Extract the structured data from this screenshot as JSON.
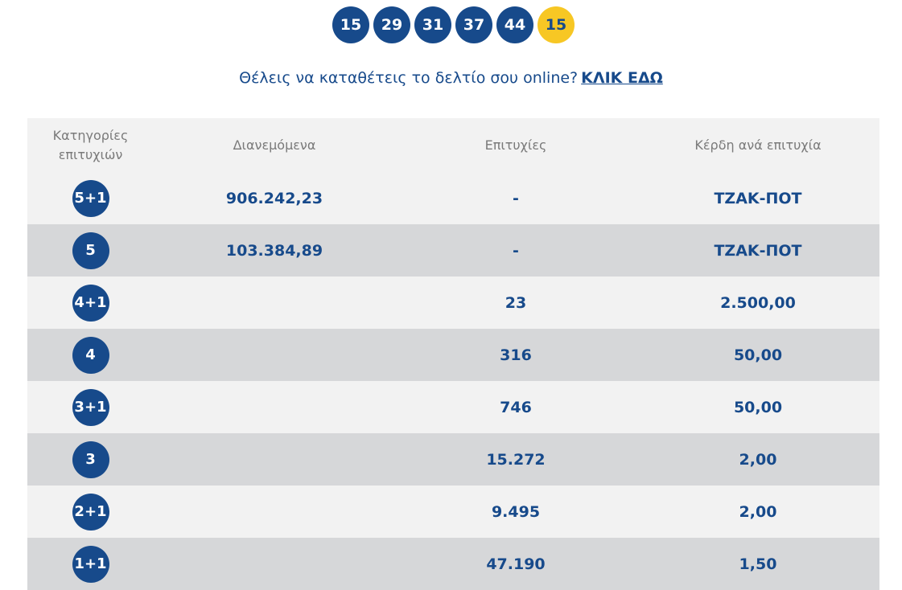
{
  "draw": {
    "numbers": [
      "15",
      "29",
      "31",
      "37",
      "44"
    ],
    "joker": "15"
  },
  "cta": {
    "text": "Θέλεις να καταθέτεις το δελτίο σου online?",
    "link": "ΚΛΙΚ ΕΔΩ"
  },
  "table": {
    "headers": {
      "category": "Κατηγορίες επιτυχιών",
      "distributed": "Διανεμόμενα",
      "winners": "Επιτυχίες",
      "prize": "Κέρδη ανά επιτυχία"
    },
    "rows": [
      {
        "category": "5+1",
        "distributed": "906.242,23",
        "winners": "-",
        "prize": "ΤΖΑΚ-ΠΟΤ"
      },
      {
        "category": "5",
        "distributed": "103.384,89",
        "winners": "-",
        "prize": "ΤΖΑΚ-ΠΟΤ"
      },
      {
        "category": "4+1",
        "distributed": "",
        "winners": "23",
        "prize": "2.500,00"
      },
      {
        "category": "4",
        "distributed": "",
        "winners": "316",
        "prize": "50,00"
      },
      {
        "category": "3+1",
        "distributed": "",
        "winners": "746",
        "prize": "50,00"
      },
      {
        "category": "3",
        "distributed": "",
        "winners": "15.272",
        "prize": "2,00"
      },
      {
        "category": "2+1",
        "distributed": "",
        "winners": "9.495",
        "prize": "2,00"
      },
      {
        "category": "1+1",
        "distributed": "",
        "winners": "47.190",
        "prize": "1,50"
      }
    ]
  },
  "colors": {
    "primary": "#174a8b",
    "joker": "#f7c724",
    "row_light": "#f2f2f2",
    "row_dark": "#d6d7d9",
    "header_text": "#7a7a7a"
  }
}
